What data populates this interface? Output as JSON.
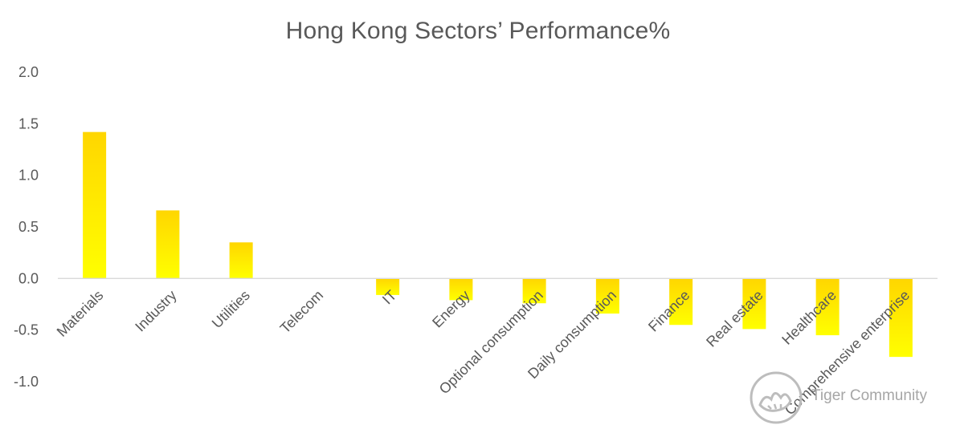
{
  "chart_data": {
    "type": "bar",
    "title": "Hong Kong Sectors’ Performance%",
    "xlabel": "",
    "ylabel": "",
    "categories": [
      "Materials",
      "Industry",
      "Utilities",
      "Telecom",
      "IT",
      "Energy",
      "Optional consumption",
      "Daily consumption",
      "Finance",
      "Real estate",
      "Healthcare",
      "Comprehensive enterprise"
    ],
    "values": [
      1.42,
      0.66,
      0.35,
      0.0,
      -0.16,
      -0.21,
      -0.24,
      -0.34,
      -0.45,
      -0.49,
      -0.55,
      -0.76
    ],
    "ylim": [
      -1.0,
      2.0
    ],
    "yticks": [
      "2.0",
      "1.5",
      "1.0",
      "0.5",
      "0.0",
      "-0.5",
      "-1.0"
    ],
    "grid": false,
    "bar_color_top": "#ffd600",
    "bar_color_bottom": "#ffff00"
  },
  "watermark": {
    "text": "Tiger Community",
    "icon": "tiger-logo-icon"
  }
}
